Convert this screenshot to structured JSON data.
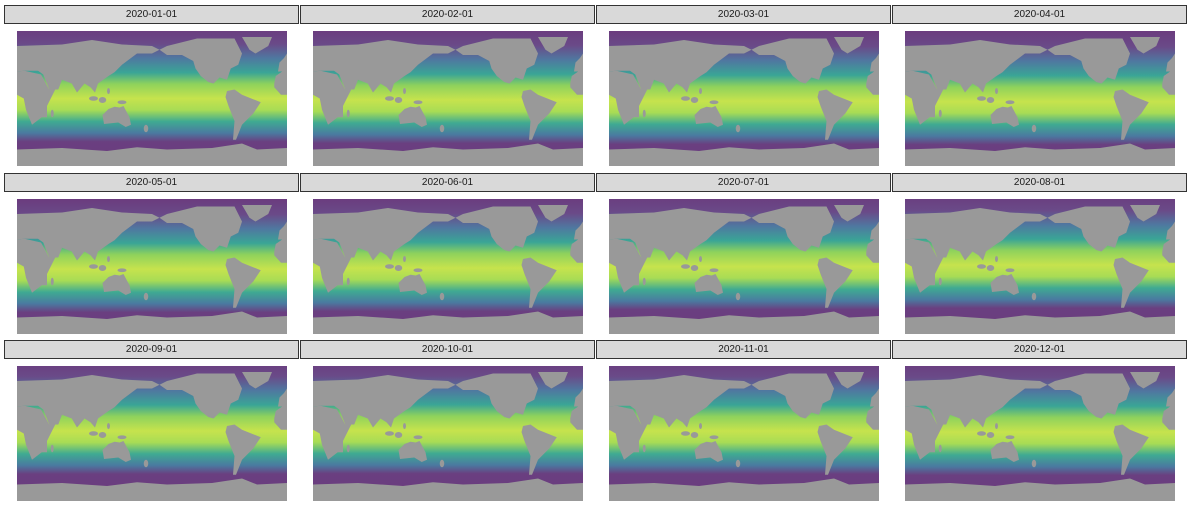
{
  "panels": [
    {
      "title": "2020-01-01"
    },
    {
      "title": "2020-02-01"
    },
    {
      "title": "2020-03-01"
    },
    {
      "title": "2020-04-01"
    },
    {
      "title": "2020-05-01"
    },
    {
      "title": "2020-06-01"
    },
    {
      "title": "2020-07-01"
    },
    {
      "title": "2020-08-01"
    },
    {
      "title": "2020-09-01"
    },
    {
      "title": "2020-10-01"
    },
    {
      "title": "2020-11-01"
    },
    {
      "title": "2020-12-01"
    }
  ],
  "map": {
    "projection": "equirectangular, longitude 0-360 (Pacific-centered)",
    "land_color": "#999999",
    "palette": [
      "#6b3a7d",
      "#5d5f9c",
      "#3f8aa0",
      "#35ad8f",
      "#7ccd64",
      "#c6e34d"
    ]
  }
}
